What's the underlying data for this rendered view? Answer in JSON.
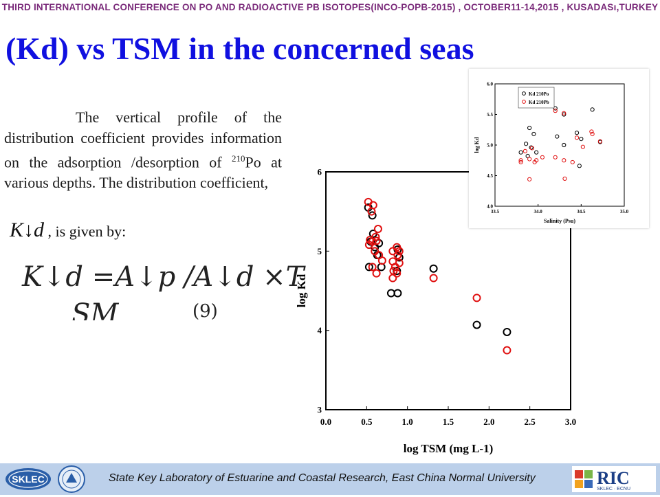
{
  "header": {
    "conference": "THIRD INTERNATIONAL CONFERENCE ON PO AND RADIOACTIVE PB ISOTOPES(INCO-POPB-2015) , OCTOBER11-14,2015 , KUSADASı,TURKEY",
    "title": "(Kd) vs TSM in the concerned seas"
  },
  "body": {
    "para_before_sup": "The vertical profile of the distribution coefficient provides information on the adsorption /desorption of ",
    "sup": "210",
    "para_after_sup": "Po at various depths. The distribution coefficient,",
    "k_symbol": "K↓d",
    "given_by": " , is given by:",
    "formula_line1": "K↓d =A↓p /A↓d ×T",
    "formula_line2": "SM",
    "equation_number": "(9)"
  },
  "footer": {
    "text": "State Key Laboratory of Estuarine and Coastal Research, East China Normal University",
    "logo_left": "SKLEC",
    "logo_right_big": "RIC",
    "logo_right_small": "SKLEC · ECNU"
  },
  "colors": {
    "title": "#1010e0",
    "conference": "#7a2a7a",
    "footer_bg": "#bcd0ea",
    "po_series": "#000000",
    "pb_series": "#e01010"
  },
  "chart_data": [
    {
      "type": "scatter",
      "title": "",
      "xlabel": "log TSM (mg L-1)",
      "ylabel": "log Kd",
      "xlim": [
        0.0,
        3.0
      ],
      "ylim": [
        3,
        6
      ],
      "xticks": [
        "0.0",
        "0.5",
        "1.0",
        "1.5",
        "2.0",
        "2.5",
        "3.0"
      ],
      "yticks": [
        "3",
        "4",
        "5",
        "6"
      ],
      "series": [
        {
          "color": "#000000",
          "points": [
            [
              0.52,
              5.55
            ],
            [
              0.57,
              5.45
            ],
            [
              0.58,
              5.22
            ],
            [
              0.55,
              5.12
            ],
            [
              0.6,
              5.05
            ],
            [
              0.63,
              4.95
            ],
            [
              0.65,
              5.1
            ],
            [
              0.53,
              4.8
            ],
            [
              0.68,
              4.8
            ],
            [
              0.8,
              4.47
            ],
            [
              0.88,
              4.47
            ],
            [
              0.88,
              5.02
            ],
            [
              0.9,
              4.92
            ],
            [
              0.87,
              4.75
            ],
            [
              1.32,
              4.78
            ],
            [
              1.85,
              4.07
            ],
            [
              2.22,
              3.98
            ]
          ]
        },
        {
          "color": "#e01010",
          "points": [
            [
              0.52,
              5.62
            ],
            [
              0.58,
              5.58
            ],
            [
              0.56,
              5.5
            ],
            [
              0.64,
              5.28
            ],
            [
              0.61,
              5.18
            ],
            [
              0.54,
              5.14
            ],
            [
              0.57,
              5.12
            ],
            [
              0.62,
              5.13
            ],
            [
              0.53,
              5.08
            ],
            [
              0.6,
              5.0
            ],
            [
              0.65,
              4.95
            ],
            [
              0.69,
              4.88
            ],
            [
              0.57,
              4.8
            ],
            [
              0.62,
              4.72
            ],
            [
              0.82,
              5.0
            ],
            [
              0.87,
              5.05
            ],
            [
              0.9,
              5.0
            ],
            [
              0.88,
              4.95
            ],
            [
              0.82,
              4.87
            ],
            [
              0.9,
              4.85
            ],
            [
              0.85,
              4.8
            ],
            [
              0.83,
              4.75
            ],
            [
              0.87,
              4.72
            ],
            [
              0.82,
              4.66
            ],
            [
              1.32,
              4.66
            ],
            [
              1.85,
              4.41
            ],
            [
              2.22,
              3.75
            ]
          ]
        }
      ]
    },
    {
      "type": "scatter",
      "title": "",
      "xlabel": "Salinity (Psu)",
      "ylabel": "log Kd",
      "xlim": [
        33.5,
        35.0
      ],
      "ylim": [
        4.0,
        6.0
      ],
      "xticks": [
        "33.5",
        "34.0",
        "34.5",
        "35.0"
      ],
      "yticks": [
        "4.0",
        "4.5",
        "5.0",
        "5.5",
        "6.0"
      ],
      "legend_position": "top-left",
      "series": [
        {
          "name": "Kd 210Po",
          "color": "#000000",
          "points": [
            [
              33.8,
              4.88
            ],
            [
              33.86,
              5.02
            ],
            [
              33.9,
              5.28
            ],
            [
              33.95,
              5.18
            ],
            [
              33.92,
              4.96
            ],
            [
              33.98,
              4.88
            ],
            [
              33.88,
              4.82
            ],
            [
              34.2,
              5.6
            ],
            [
              34.3,
              5.5
            ],
            [
              34.22,
              5.14
            ],
            [
              34.3,
              5.0
            ],
            [
              34.45,
              5.2
            ],
            [
              34.5,
              5.1
            ],
            [
              34.48,
              4.66
            ],
            [
              34.63,
              5.58
            ],
            [
              34.72,
              5.05
            ]
          ]
        },
        {
          "name": "Kd 210Pb",
          "color": "#e01010",
          "points": [
            [
              33.8,
              4.75
            ],
            [
              33.8,
              4.72
            ],
            [
              33.85,
              4.9
            ],
            [
              33.9,
              4.44
            ],
            [
              33.93,
              4.95
            ],
            [
              33.96,
              4.72
            ],
            [
              33.9,
              4.77
            ],
            [
              33.98,
              4.75
            ],
            [
              34.05,
              4.8
            ],
            [
              34.2,
              5.56
            ],
            [
              34.3,
              5.52
            ],
            [
              34.2,
              4.8
            ],
            [
              34.3,
              4.75
            ],
            [
              34.31,
              4.45
            ],
            [
              34.4,
              4.72
            ],
            [
              34.45,
              5.12
            ],
            [
              34.52,
              4.97
            ],
            [
              34.62,
              5.22
            ],
            [
              34.63,
              5.18
            ],
            [
              34.72,
              5.06
            ]
          ]
        }
      ]
    }
  ]
}
